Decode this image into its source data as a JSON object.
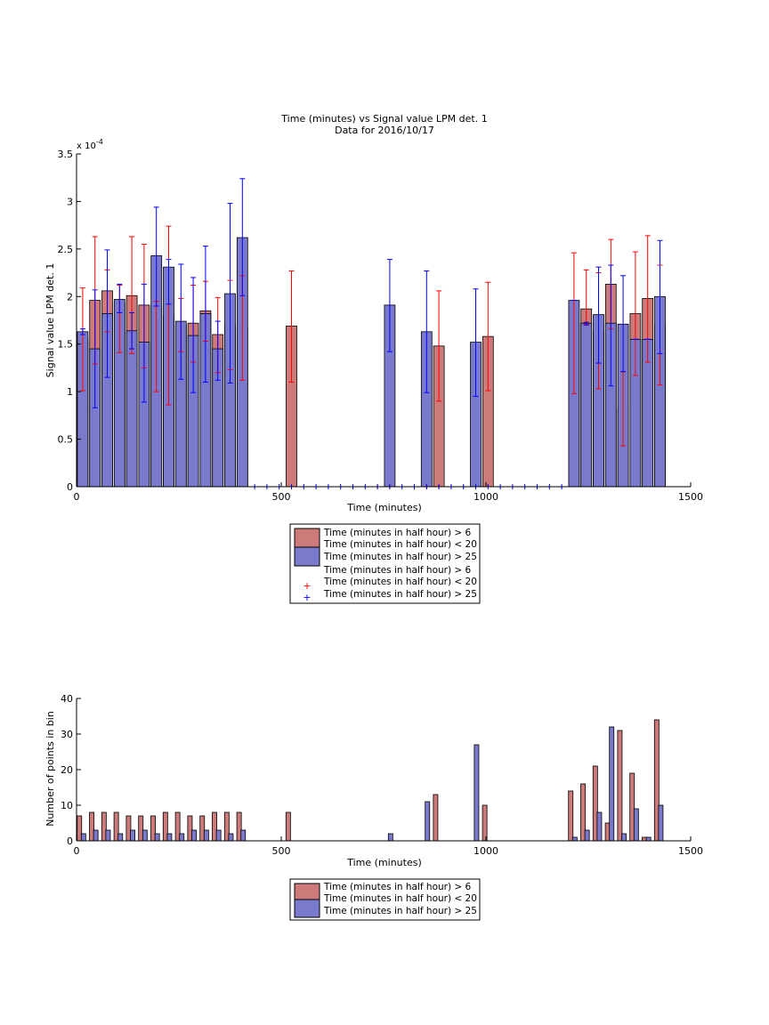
{
  "chart_data": [
    {
      "type": "bar",
      "title": [
        "Time (minutes) vs Signal value LPM det. 1",
        "Data for 2016/10/17"
      ],
      "xlabel": "Time (minutes)",
      "ylabel": "Signal value LPM det. 1",
      "y_exponent_label": "x 10",
      "y_exponent_power": "-4",
      "y_scale": 0.0001,
      "xlim": [
        0,
        1500
      ],
      "ylim": [
        0,
        3.5
      ],
      "xticks": [
        0,
        500,
        1000,
        1500
      ],
      "xtick_labels": [
        "0",
        "500",
        "1000",
        "1500"
      ],
      "yticks": [
        0,
        0.5,
        1,
        1.5,
        2,
        2.5,
        3,
        3.5
      ],
      "ytick_labels": [
        "0",
        "0.5",
        "1",
        "1.5",
        "2",
        "2.5",
        "3",
        "3.5"
      ],
      "grid": false,
      "legend_position": "below",
      "legend": [
        "Time (minutes in half hour) > 6",
        "Time (minutes in half hour) < 20",
        "Time (minutes in half hour) > 25",
        "Time (minutes in half hour) > 6",
        "Time (minutes in half hour) < 20",
        "Time (minutes in half hour) > 25"
      ],
      "series": [
        {
          "color": "#cc7a7a",
          "errcolor": "#ff0000",
          "x": [
            15,
            45,
            75,
            105,
            135,
            165,
            195,
            225,
            255,
            285,
            315,
            345,
            375,
            405,
            525,
            885,
            1005,
            1215,
            1245,
            1275,
            1305,
            1335,
            1365,
            1395,
            1425
          ],
          "values": [
            1.55,
            1.96,
            2.06,
            1.93,
            2.01,
            1.91,
            1.91,
            1.8,
            1.7,
            1.72,
            1.85,
            1.6,
            1.7,
            1.67,
            1.69,
            1.48,
            1.58,
            1.72,
            1.87,
            1.64,
            2.13,
            0.82,
            1.82,
            1.98,
            1.7
          ],
          "err_low": [
            1.01,
            1.29,
            1.63,
            1.41,
            1.4,
            1.25,
            1.0,
            0.86,
            1.42,
            1.31,
            1.53,
            1.2,
            1.23,
            1.12,
            1.1,
            0.9,
            1.01,
            0.98,
            1.71,
            1.03,
            1.66,
            0.43,
            1.17,
            1.31,
            1.07
          ],
          "err_high": [
            2.09,
            2.63,
            2.28,
            2.12,
            2.63,
            2.55,
            1.95,
            2.74,
            1.98,
            2.12,
            2.16,
            1.99,
            2.17,
            2.22,
            2.27,
            2.06,
            2.15,
            2.46,
            2.28,
            2.25,
            2.6,
            1.21,
            2.47,
            2.64,
            2.33
          ]
        },
        {
          "color": "#7a7acc",
          "errcolor": "#0000ff",
          "x": [
            15,
            45,
            75,
            105,
            135,
            165,
            195,
            225,
            255,
            285,
            315,
            345,
            375,
            405,
            765,
            855,
            975,
            1215,
            1245,
            1275,
            1305,
            1335,
            1365,
            1395,
            1425
          ],
          "values": [
            1.63,
            1.45,
            1.82,
            1.97,
            1.64,
            1.52,
            2.43,
            2.31,
            1.74,
            1.59,
            1.82,
            1.45,
            2.03,
            2.62,
            1.91,
            1.63,
            1.52,
            1.96,
            1.72,
            1.81,
            1.72,
            1.71,
            1.55,
            1.55,
            2.0
          ],
          "err_low": [
            1.6,
            0.83,
            1.15,
            1.83,
            1.45,
            0.89,
            1.9,
            1.92,
            1.13,
            0.99,
            1.1,
            1.12,
            1.09,
            2.01,
            1.42,
            0.99,
            0.95,
            1.96,
            1.7,
            1.3,
            1.06,
            1.21,
            1.55,
            1.55,
            1.4
          ],
          "err_high": [
            1.66,
            2.07,
            2.49,
            2.13,
            1.83,
            2.13,
            2.94,
            2.39,
            2.34,
            2.2,
            2.53,
            1.74,
            2.98,
            3.24,
            2.39,
            2.27,
            2.08,
            1.96,
            1.73,
            2.31,
            2.33,
            2.22,
            1.55,
            1.55,
            2.59
          ]
        }
      ],
      "empty_markers": {
        "red_x": [
          735,
          765,
          855,
          885
        ],
        "blue_x": [
          435,
          465,
          495,
          525,
          555,
          585,
          615,
          645,
          675,
          705,
          735,
          765,
          795,
          825,
          855,
          885,
          915,
          945,
          975,
          1005,
          1035,
          1065,
          1095,
          1125,
          1155,
          1185
        ]
      }
    },
    {
      "type": "bar",
      "xlabel": "Time (minutes)",
      "ylabel": "Number of points in bin",
      "xlim": [
        0,
        1500
      ],
      "ylim": [
        0,
        40
      ],
      "xticks": [
        0,
        500,
        1000,
        1500
      ],
      "xtick_labels": [
        "0",
        "500",
        "1000",
        "1500"
      ],
      "yticks": [
        0,
        10,
        20,
        30,
        40
      ],
      "ytick_labels": [
        "0",
        "10",
        "20",
        "30",
        "40"
      ],
      "grid": false,
      "legend_position": "below",
      "legend": [
        "Time (minutes in half hour) > 6",
        "Time (minutes in half hour) < 20",
        "Time (minutes in half hour) > 25"
      ],
      "series": [
        {
          "color": "#cc7a7a",
          "x": [
            7,
            37,
            67,
            97,
            127,
            157,
            187,
            217,
            247,
            277,
            307,
            337,
            367,
            397,
            517,
            877,
            997,
            1207,
            1237,
            1267,
            1297,
            1327,
            1357,
            1387,
            1417
          ],
          "values": [
            7,
            8,
            8,
            8,
            7,
            7,
            7,
            8,
            8,
            7,
            7,
            8,
            8,
            8,
            8,
            13,
            10,
            14,
            16,
            21,
            5,
            31,
            19,
            1,
            34
          ]
        },
        {
          "color": "#7a7acc",
          "x": [
            17,
            47,
            77,
            107,
            137,
            167,
            197,
            227,
            257,
            287,
            317,
            347,
            377,
            407,
            767,
            857,
            977,
            1217,
            1247,
            1277,
            1307,
            1337,
            1367,
            1397,
            1427
          ],
          "values": [
            2,
            3,
            3,
            2,
            3,
            3,
            2,
            2,
            2,
            3,
            3,
            3,
            2,
            3,
            2,
            11,
            27,
            1,
            3,
            8,
            32,
            2,
            9,
            1,
            10
          ]
        }
      ]
    }
  ]
}
